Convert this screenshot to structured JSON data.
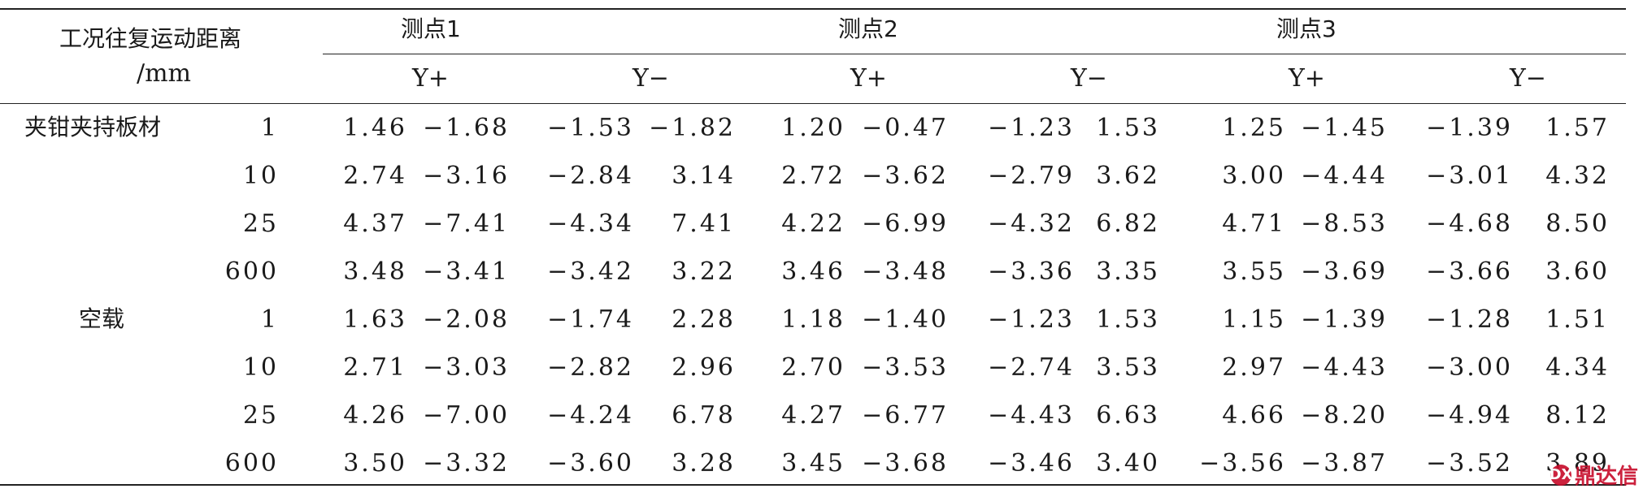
{
  "table": {
    "header": {
      "condition_label_line1": "工况往复运动距离",
      "condition_label_line2": "/mm",
      "points": [
        "测点1",
        "测点2",
        "测点3"
      ],
      "directions": [
        "Y+",
        "Y−",
        "Y+",
        "Y−",
        "Y+",
        "Y−"
      ]
    },
    "groups": [
      {
        "label": "夹钳夹持板材",
        "rows": [
          {
            "distance": "1",
            "values": [
              "1.46",
              "−1.68",
              "−1.53",
              "−1.82",
              "1.20",
              "−0.47",
              "−1.23",
              "1.53",
              "1.25",
              "−1.45",
              "−1.39",
              "1.57"
            ]
          },
          {
            "distance": "10",
            "values": [
              "2.74",
              "−3.16",
              "−2.84",
              "3.14",
              "2.72",
              "−3.62",
              "−2.79",
              "3.62",
              "3.00",
              "−4.44",
              "−3.01",
              "4.32"
            ]
          },
          {
            "distance": "25",
            "values": [
              "4.37",
              "−7.41",
              "−4.34",
              "7.41",
              "4.22",
              "−6.99",
              "−4.32",
              "6.82",
              "4.71",
              "−8.53",
              "−4.68",
              "8.50"
            ]
          },
          {
            "distance": "600",
            "values": [
              "3.48",
              "−3.41",
              "−3.42",
              "3.22",
              "3.46",
              "−3.48",
              "−3.36",
              "3.35",
              "3.55",
              "−3.69",
              "−3.66",
              "3.60"
            ]
          }
        ]
      },
      {
        "label": "空载",
        "rows": [
          {
            "distance": "1",
            "values": [
              "1.63",
              "−2.08",
              "−1.74",
              "2.28",
              "1.18",
              "−1.40",
              "−1.23",
              "1.53",
              "1.15",
              "−1.39",
              "−1.28",
              "1.51"
            ]
          },
          {
            "distance": "10",
            "values": [
              "2.71",
              "−3.03",
              "−2.82",
              "2.96",
              "2.70",
              "−3.53",
              "−2.74",
              "3.53",
              "2.97",
              "−4.43",
              "−3.00",
              "4.34"
            ]
          },
          {
            "distance": "25",
            "values": [
              "4.26",
              "−7.00",
              "−4.24",
              "6.78",
              "4.27",
              "−6.77",
              "−4.43",
              "6.63",
              "4.66",
              "−8.20",
              "−4.94",
              "8.12"
            ]
          },
          {
            "distance": "600",
            "values": [
              "3.50",
              "−3.32",
              "−3.60",
              "3.28",
              "3.45",
              "−3.68",
              "−3.46",
              "3.40",
              "−3.56",
              "−3.87",
              "−3.52",
              "3.89"
            ]
          }
        ]
      }
    ]
  },
  "watermark": {
    "text": "鼎达信",
    "logo_glyph": "DX"
  }
}
